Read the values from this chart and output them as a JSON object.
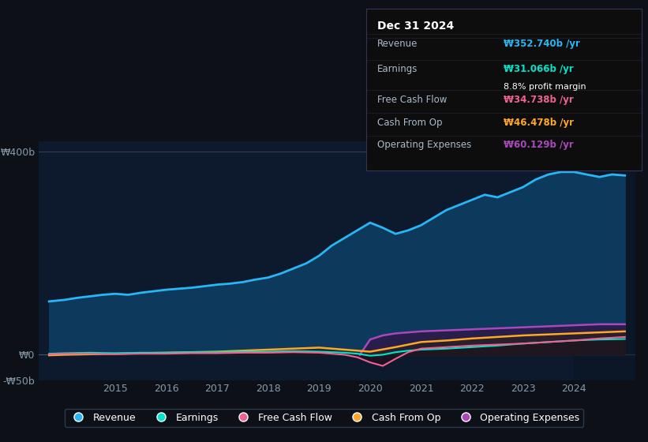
{
  "background_color": "#0d1117",
  "plot_bg_color": "#0d1a2e",
  "title": "Dec 31 2024",
  "ylim": [
    -50,
    420
  ],
  "xlim": [
    2013.5,
    2025.2
  ],
  "yticks": [
    -50,
    0,
    400
  ],
  "ytick_labels": [
    "-₩50b",
    "₩0",
    "₩400b"
  ],
  "xticks": [
    2015,
    2016,
    2017,
    2018,
    2019,
    2020,
    2021,
    2022,
    2023,
    2024
  ],
  "colors": {
    "revenue": "#29b6f6",
    "earnings": "#00e5cc",
    "free_cash_flow": "#f06292",
    "cash_from_op": "#ffa726",
    "operating_expenses": "#ab47bc",
    "revenue_fill": "#0d3a5c",
    "earnings_fill": "#0d3a2e",
    "op_exp_fill": "#2e1a4a",
    "cash_fill": "#2e2a1a"
  },
  "revenue": {
    "x": [
      2013.7,
      2014.0,
      2014.25,
      2014.5,
      2014.75,
      2015.0,
      2015.25,
      2015.5,
      2015.75,
      2016.0,
      2016.25,
      2016.5,
      2016.75,
      2017.0,
      2017.25,
      2017.5,
      2017.75,
      2018.0,
      2018.25,
      2018.5,
      2018.75,
      2019.0,
      2019.25,
      2019.5,
      2019.75,
      2020.0,
      2020.25,
      2020.5,
      2020.75,
      2021.0,
      2021.25,
      2021.5,
      2021.75,
      2022.0,
      2022.25,
      2022.5,
      2022.75,
      2023.0,
      2023.25,
      2023.5,
      2023.75,
      2024.0,
      2024.25,
      2024.5,
      2024.75,
      2025.0
    ],
    "y": [
      105,
      108,
      112,
      115,
      118,
      120,
      118,
      122,
      125,
      128,
      130,
      132,
      135,
      138,
      140,
      143,
      148,
      152,
      160,
      170,
      180,
      195,
      215,
      230,
      245,
      260,
      250,
      238,
      245,
      255,
      270,
      285,
      295,
      305,
      315,
      310,
      320,
      330,
      345,
      355,
      360,
      360,
      355,
      350,
      355,
      353
    ]
  },
  "earnings": {
    "x": [
      2013.7,
      2014.0,
      2014.5,
      2015.0,
      2015.5,
      2016.0,
      2016.5,
      2017.0,
      2017.5,
      2018.0,
      2018.5,
      2019.0,
      2019.5,
      2019.75,
      2020.0,
      2020.25,
      2020.5,
      2020.75,
      2021.0,
      2021.5,
      2022.0,
      2022.5,
      2023.0,
      2023.5,
      2024.0,
      2024.5,
      2025.0
    ],
    "y": [
      2,
      3,
      4,
      3,
      4,
      4,
      5,
      5,
      6,
      6,
      7,
      6,
      4,
      2,
      -2,
      0,
      5,
      8,
      10,
      12,
      15,
      18,
      22,
      25,
      28,
      30,
      31
    ]
  },
  "free_cash_flow": {
    "x": [
      2013.7,
      2014.0,
      2014.5,
      2015.0,
      2015.5,
      2016.0,
      2016.5,
      2017.0,
      2017.5,
      2018.0,
      2018.5,
      2019.0,
      2019.25,
      2019.5,
      2019.75,
      2020.0,
      2020.25,
      2020.5,
      2020.75,
      2021.0,
      2021.5,
      2022.0,
      2022.5,
      2023.0,
      2023.5,
      2024.0,
      2024.5,
      2025.0
    ],
    "y": [
      1,
      2,
      2,
      1,
      2,
      2,
      3,
      3,
      4,
      4,
      5,
      4,
      2,
      0,
      -5,
      -15,
      -22,
      -8,
      5,
      12,
      15,
      18,
      20,
      22,
      25,
      28,
      32,
      35
    ]
  },
  "cash_from_op": {
    "x": [
      2013.7,
      2014.0,
      2014.5,
      2015.0,
      2015.5,
      2016.0,
      2016.5,
      2017.0,
      2017.5,
      2018.0,
      2018.5,
      2019.0,
      2019.5,
      2020.0,
      2020.5,
      2020.75,
      2021.0,
      2021.5,
      2022.0,
      2022.5,
      2023.0,
      2023.5,
      2024.0,
      2024.5,
      2025.0
    ],
    "y": [
      -1,
      0,
      1,
      2,
      3,
      4,
      5,
      6,
      8,
      10,
      12,
      14,
      10,
      6,
      15,
      20,
      25,
      28,
      32,
      35,
      38,
      40,
      42,
      44,
      46
    ]
  },
  "operating_expenses": {
    "x": [
      2019.8,
      2020.0,
      2020.25,
      2020.5,
      2020.75,
      2021.0,
      2021.5,
      2022.0,
      2022.5,
      2023.0,
      2023.5,
      2024.0,
      2024.5,
      2025.0
    ],
    "y": [
      0,
      30,
      38,
      42,
      44,
      46,
      48,
      50,
      52,
      54,
      56,
      58,
      60,
      60
    ]
  },
  "tooltip": {
    "date": "Dec 31 2024",
    "revenue_val": "₩352.740b",
    "earnings_val": "₩31.066b",
    "profit_margin": "8.8%",
    "fcf_val": "₩34.738b",
    "cash_op_val": "₩46.478b",
    "op_exp_val": "₩60.129b"
  },
  "legend": [
    {
      "label": "Revenue",
      "color": "#29b6f6"
    },
    {
      "label": "Earnings",
      "color": "#00e5cc"
    },
    {
      "label": "Free Cash Flow",
      "color": "#f06292"
    },
    {
      "label": "Cash From Op",
      "color": "#ffa726"
    },
    {
      "label": "Operating Expenses",
      "color": "#ab47bc"
    }
  ]
}
